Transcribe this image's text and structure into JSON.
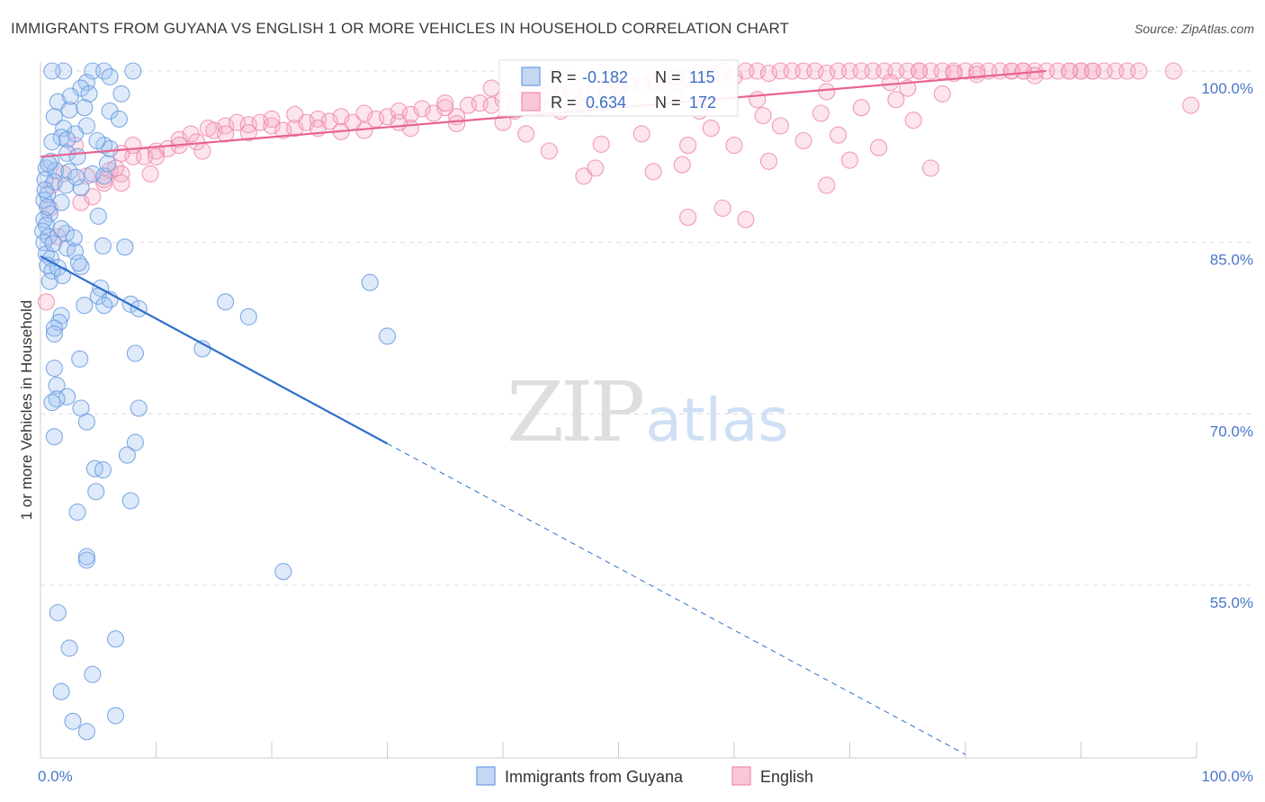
{
  "header": {
    "title": "IMMIGRANTS FROM GUYANA VS ENGLISH 1 OR MORE VEHICLES IN HOUSEHOLD CORRELATION CHART",
    "source": "Source: ZipAtlas.com"
  },
  "watermark": {
    "zip": "ZIP",
    "atlas": "atlas"
  },
  "stats": {
    "r_label": "R =",
    "n_label": "N =",
    "blue": {
      "r": "-0.182",
      "n": "115"
    },
    "pink": {
      "r": "0.634",
      "n": "172"
    }
  },
  "colors": {
    "blue": "#6a9be0",
    "blue_line": "#2e6fcc",
    "pink": "#f08aaa",
    "pink_line": "#e8638f",
    "grid": "#dcdcdc"
  },
  "chart_data": {
    "type": "scatter",
    "title": "IMMIGRANTS FROM GUYANA VS ENGLISH 1 OR MORE VEHICLES IN HOUSEHOLD CORRELATION CHART",
    "xlabel": "",
    "ylabel": "1 or more Vehicles in Household",
    "xlim": [
      0,
      100
    ],
    "ylim": [
      40,
      102
    ],
    "y_ticks": [
      {
        "value": 100,
        "label": "100.0%"
      },
      {
        "value": 85,
        "label": "85.0%"
      },
      {
        "value": 70,
        "label": "70.0%"
      },
      {
        "value": 55,
        "label": "55.0%"
      }
    ],
    "x_ticks": [
      {
        "value": 0,
        "label": "0.0%"
      },
      {
        "value": 100,
        "label": "100.0%"
      }
    ],
    "grid": true,
    "legend": "bottom-center",
    "series": [
      {
        "name": "Immigrants from Guyana",
        "color": "#6a9be0",
        "trend": {
          "x": [
            0,
            30
          ],
          "y": [
            83.8,
            67.4
          ],
          "extended_to": [
            80,
            40.2
          ]
        },
        "points": [
          [
            2,
            100
          ],
          [
            4.5,
            100
          ],
          [
            5.5,
            100
          ],
          [
            8,
            100
          ],
          [
            1,
            100
          ],
          [
            6,
            99.5
          ],
          [
            4,
            99
          ],
          [
            3.5,
            98.5
          ],
          [
            4.2,
            98
          ],
          [
            7,
            98
          ],
          [
            1.5,
            97.3
          ],
          [
            3.8,
            96.8
          ],
          [
            2.5,
            96.6
          ],
          [
            6,
            96.5
          ],
          [
            1.2,
            96
          ],
          [
            4,
            95.2
          ],
          [
            2,
            95
          ],
          [
            3,
            94.5
          ],
          [
            1.8,
            94.2
          ],
          [
            2.3,
            94
          ],
          [
            1,
            93.8
          ],
          [
            5.5,
            93.5
          ],
          [
            6,
            93.2
          ],
          [
            2.3,
            92.8
          ],
          [
            3.2,
            92.5
          ],
          [
            0.5,
            91.5
          ],
          [
            1.3,
            91.3
          ],
          [
            2.5,
            91.2
          ],
          [
            4.5,
            91
          ],
          [
            5.5,
            90.8
          ],
          [
            0.4,
            90.5
          ],
          [
            1.2,
            90.3
          ],
          [
            2.2,
            90
          ],
          [
            3.5,
            89.8
          ],
          [
            0.6,
            89.2
          ],
          [
            0.3,
            88.7
          ],
          [
            1.8,
            88.5
          ],
          [
            0.8,
            87.5
          ],
          [
            0.3,
            87
          ],
          [
            5,
            87.3
          ],
          [
            0.5,
            86.5
          ],
          [
            0.2,
            86
          ],
          [
            2.2,
            85.8
          ],
          [
            0.7,
            85.5
          ],
          [
            0.3,
            85
          ],
          [
            5.4,
            84.7
          ],
          [
            2.3,
            84.5
          ],
          [
            3,
            84.2
          ],
          [
            7.3,
            84.6
          ],
          [
            0.5,
            84
          ],
          [
            0.9,
            83.6
          ],
          [
            0.6,
            83
          ],
          [
            1.5,
            82.8
          ],
          [
            3.5,
            82.9
          ],
          [
            1,
            82.5
          ],
          [
            0.8,
            81.6
          ],
          [
            5.2,
            81
          ],
          [
            5,
            80.3
          ],
          [
            6,
            80
          ],
          [
            5.5,
            79.5
          ],
          [
            3.8,
            79.5
          ],
          [
            7.8,
            79.6
          ],
          [
            8.5,
            79.2
          ],
          [
            16,
            79.8
          ],
          [
            18,
            78.5
          ],
          [
            1.8,
            78.6
          ],
          [
            1.6,
            78
          ],
          [
            1.2,
            77.5
          ],
          [
            1.2,
            77
          ],
          [
            28.5,
            81.5
          ],
          [
            30,
            76.8
          ],
          [
            14,
            75.7
          ],
          [
            8.2,
            75.3
          ],
          [
            3.4,
            74.8
          ],
          [
            1.2,
            74
          ],
          [
            1.4,
            72.5
          ],
          [
            2.3,
            71.5
          ],
          [
            1.4,
            71.3
          ],
          [
            1,
            71
          ],
          [
            3.5,
            70.5
          ],
          [
            8.5,
            70.5
          ],
          [
            4,
            69.3
          ],
          [
            1.2,
            68
          ],
          [
            8.2,
            67.5
          ],
          [
            7.5,
            66.4
          ],
          [
            4.7,
            65.2
          ],
          [
            5.4,
            65.1
          ],
          [
            4.8,
            63.2
          ],
          [
            7.8,
            62.4
          ],
          [
            3.2,
            61.4
          ],
          [
            4,
            57.5
          ],
          [
            4,
            57.2
          ],
          [
            21,
            56.2
          ],
          [
            1.5,
            52.6
          ],
          [
            2.5,
            49.5
          ],
          [
            6.5,
            50.3
          ],
          [
            4.5,
            47.2
          ],
          [
            1.8,
            45.7
          ],
          [
            2.8,
            43.1
          ],
          [
            4,
            42.2
          ],
          [
            6.5,
            43.6
          ],
          [
            0.4,
            89.6
          ],
          [
            1.8,
            86.2
          ],
          [
            3.3,
            83.2
          ],
          [
            0.9,
            92.1
          ],
          [
            6.8,
            95.8
          ],
          [
            2.6,
            97.8
          ],
          [
            4.9,
            93.9
          ],
          [
            0.6,
            88.1
          ],
          [
            1.1,
            84.9
          ],
          [
            3.1,
            90.7
          ],
          [
            5.8,
            91.9
          ],
          [
            1.9,
            82.1
          ],
          [
            2.9,
            85.4
          ],
          [
            0.7,
            91.9
          ]
        ]
      },
      {
        "name": "English",
        "color": "#f08aaa",
        "trend": {
          "x": [
            0,
            87
          ],
          "y": [
            92.5,
            100
          ]
        },
        "points": [
          [
            1.5,
            85.5
          ],
          [
            0.5,
            79.8
          ],
          [
            3.5,
            88.5
          ],
          [
            4.5,
            89
          ],
          [
            4,
            90.8
          ],
          [
            5.5,
            90.5
          ],
          [
            6,
            91.3
          ],
          [
            7,
            91
          ],
          [
            5.5,
            90.2
          ],
          [
            6.5,
            91.5
          ],
          [
            8,
            92.5
          ],
          [
            9,
            92.5
          ],
          [
            10,
            93
          ],
          [
            8,
            93.5
          ],
          [
            11,
            93.2
          ],
          [
            12,
            94
          ],
          [
            13,
            94.5
          ],
          [
            13.5,
            93.8
          ],
          [
            14.5,
            95
          ],
          [
            15,
            94.8
          ],
          [
            16,
            95.2
          ],
          [
            17,
            95.5
          ],
          [
            18,
            95.3
          ],
          [
            19,
            95.5
          ],
          [
            20,
            95.2
          ],
          [
            21,
            94.8
          ],
          [
            22,
            95
          ],
          [
            23,
            95.5
          ],
          [
            24,
            95.8
          ],
          [
            25,
            95.6
          ],
          [
            26,
            96
          ],
          [
            27,
            95.5
          ],
          [
            28,
            96.3
          ],
          [
            29,
            95.8
          ],
          [
            30,
            96
          ],
          [
            31,
            96.5
          ],
          [
            32,
            96.2
          ],
          [
            33,
            96.7
          ],
          [
            34,
            96.3
          ],
          [
            35,
            96.8
          ],
          [
            36,
            96
          ],
          [
            37,
            97
          ],
          [
            38,
            97.2
          ],
          [
            39,
            97
          ],
          [
            40,
            97.5
          ],
          [
            41,
            96.5
          ],
          [
            42,
            97.8
          ],
          [
            43,
            97
          ],
          [
            44,
            98
          ],
          [
            45,
            97.8
          ],
          [
            46,
            98.2
          ],
          [
            47,
            97.5
          ],
          [
            48,
            98.5
          ],
          [
            49,
            98
          ],
          [
            50,
            98.8
          ],
          [
            51,
            99
          ],
          [
            52,
            98.8
          ],
          [
            53,
            99.2
          ],
          [
            54,
            99
          ],
          [
            55,
            99.5
          ],
          [
            56,
            99.3
          ],
          [
            57,
            99.8
          ],
          [
            58,
            99.5
          ],
          [
            59,
            100
          ],
          [
            60,
            99.5
          ],
          [
            61,
            100
          ],
          [
            62,
            100
          ],
          [
            63,
            99.8
          ],
          [
            64,
            100
          ],
          [
            65,
            100
          ],
          [
            66,
            100
          ],
          [
            67,
            100
          ],
          [
            68,
            99.8
          ],
          [
            69,
            100
          ],
          [
            70,
            100
          ],
          [
            71,
            100
          ],
          [
            72,
            100
          ],
          [
            73,
            100
          ],
          [
            74,
            100
          ],
          [
            75,
            100
          ],
          [
            76,
            100
          ],
          [
            77,
            100
          ],
          [
            78,
            100
          ],
          [
            79,
            100
          ],
          [
            80,
            100
          ],
          [
            81,
            100
          ],
          [
            82,
            100
          ],
          [
            83,
            100
          ],
          [
            84,
            100
          ],
          [
            85,
            100
          ],
          [
            86,
            100
          ],
          [
            87,
            100
          ],
          [
            88,
            100
          ],
          [
            89,
            100
          ],
          [
            90,
            100
          ],
          [
            91,
            100
          ],
          [
            92,
            100
          ],
          [
            93,
            100
          ],
          [
            94,
            100
          ],
          [
            98,
            100
          ],
          [
            99.5,
            97
          ],
          [
            78,
            98
          ],
          [
            75,
            98.5
          ],
          [
            73.5,
            99
          ],
          [
            68,
            98.2
          ],
          [
            62,
            97.5
          ],
          [
            57,
            96.5
          ],
          [
            55,
            97.8
          ],
          [
            50,
            98.5
          ],
          [
            45,
            96.5
          ],
          [
            42,
            94.5
          ],
          [
            40,
            95.5
          ],
          [
            36,
            95.4
          ],
          [
            32,
            95
          ],
          [
            28,
            94.8
          ],
          [
            24,
            95
          ],
          [
            20,
            95.8
          ],
          [
            16,
            94.5
          ],
          [
            12,
            93.5
          ],
          [
            10,
            92.5
          ],
          [
            7,
            92.8
          ],
          [
            3,
            93.5
          ],
          [
            2,
            91
          ],
          [
            1,
            90
          ],
          [
            0.8,
            88
          ],
          [
            7,
            90.2
          ],
          [
            9.5,
            91
          ],
          [
            14,
            93
          ],
          [
            18,
            94.6
          ],
          [
            22,
            96.2
          ],
          [
            26,
            94.7
          ],
          [
            31,
            95.5
          ],
          [
            35,
            97.2
          ],
          [
            39,
            98.5
          ],
          [
            43,
            98.8
          ],
          [
            47,
            96.8
          ],
          [
            52,
            94.5
          ],
          [
            56,
            93.5
          ],
          [
            58,
            95
          ],
          [
            60,
            93.5
          ],
          [
            64,
            95.2
          ],
          [
            66,
            93.9
          ],
          [
            69,
            94.4
          ],
          [
            70,
            92.2
          ],
          [
            63,
            92.1
          ],
          [
            53,
            91.2
          ],
          [
            44,
            93
          ],
          [
            59,
            88
          ],
          [
            56,
            87.2
          ],
          [
            61,
            87
          ],
          [
            68,
            90
          ],
          [
            77,
            91.5
          ],
          [
            71,
            96.8
          ],
          [
            74,
            97.5
          ],
          [
            76,
            100
          ],
          [
            84,
            100
          ],
          [
            86,
            99.6
          ],
          [
            90,
            100
          ],
          [
            95,
            100
          ],
          [
            91,
            100
          ],
          [
            89,
            100
          ],
          [
            85,
            100
          ],
          [
            81,
            99.7
          ],
          [
            79,
            99.8
          ],
          [
            48.5,
            93.6
          ],
          [
            55.5,
            91.8
          ],
          [
            62.5,
            96.1
          ],
          [
            67.5,
            96.3
          ],
          [
            72.5,
            93.3
          ],
          [
            75.5,
            95.7
          ],
          [
            47,
            90.8
          ],
          [
            48,
            91.5
          ]
        ]
      }
    ]
  },
  "legend": {
    "items": [
      {
        "label": "Immigrants from Guyana"
      },
      {
        "label": "English"
      }
    ]
  }
}
